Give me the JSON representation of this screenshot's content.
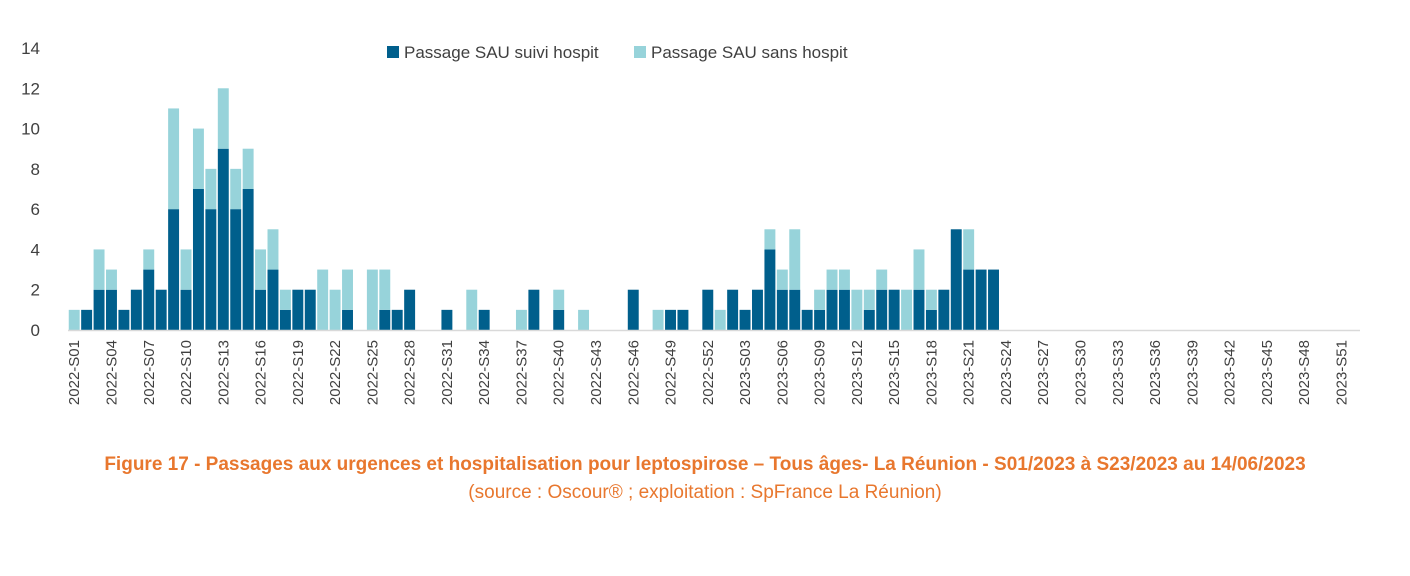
{
  "chart_data": {
    "type": "bar",
    "stacked": true,
    "title": "",
    "xlabel": "",
    "ylabel": "",
    "ylim": [
      0,
      14
    ],
    "yticks": [
      0,
      2,
      4,
      6,
      8,
      10,
      12,
      14
    ],
    "grid": false,
    "legend_position": "top-center",
    "colors": {
      "hosp": "#005F8C",
      "sans": "#97D3DA",
      "axis": "#D9D9D9"
    },
    "x_label_every": 3,
    "categories": [
      "2022-S01",
      "2022-S02",
      "2022-S03",
      "2022-S04",
      "2022-S05",
      "2022-S06",
      "2022-S07",
      "2022-S08",
      "2022-S09",
      "2022-S10",
      "2022-S11",
      "2022-S12",
      "2022-S13",
      "2022-S14",
      "2022-S15",
      "2022-S16",
      "2022-S17",
      "2022-S18",
      "2022-S19",
      "2022-S20",
      "2022-S21",
      "2022-S22",
      "2022-S23",
      "2022-S24",
      "2022-S25",
      "2022-S26",
      "2022-S27",
      "2022-S28",
      "2022-S29",
      "2022-S30",
      "2022-S31",
      "2022-S32",
      "2022-S33",
      "2022-S34",
      "2022-S35",
      "2022-S36",
      "2022-S37",
      "2022-S38",
      "2022-S39",
      "2022-S40",
      "2022-S41",
      "2022-S42",
      "2022-S43",
      "2022-S44",
      "2022-S45",
      "2022-S46",
      "2022-S47",
      "2022-S48",
      "2022-S49",
      "2022-S50",
      "2022-S51",
      "2022-S52",
      "2023-S01",
      "2023-S02",
      "2023-S03",
      "2023-S04",
      "2023-S05",
      "2023-S06",
      "2023-S07",
      "2023-S08",
      "2023-S09",
      "2023-S10",
      "2023-S11",
      "2023-S12",
      "2023-S13",
      "2023-S14",
      "2023-S15",
      "2023-S16",
      "2023-S17",
      "2023-S18",
      "2023-S19",
      "2023-S20",
      "2023-S21",
      "2023-S22",
      "2023-S23",
      "2023-S24",
      "2023-S25",
      "2023-S26",
      "2023-S27",
      "2023-S28",
      "2023-S29",
      "2023-S30",
      "2023-S31",
      "2023-S32",
      "2023-S33",
      "2023-S34",
      "2023-S35",
      "2023-S36",
      "2023-S37",
      "2023-S38",
      "2023-S39",
      "2023-S40",
      "2023-S41",
      "2023-S42",
      "2023-S43",
      "2023-S44",
      "2023-S45",
      "2023-S46",
      "2023-S47",
      "2023-S48",
      "2023-S49",
      "2023-S50",
      "2023-S51",
      "2023-S52"
    ],
    "series": [
      {
        "name": "Passage SAU suivi hospit",
        "values": [
          0,
          1,
          2,
          2,
          1,
          2,
          3,
          2,
          6,
          2,
          7,
          6,
          9,
          6,
          7,
          2,
          3,
          1,
          2,
          2,
          0,
          0,
          1,
          0,
          0,
          1,
          1,
          2,
          0,
          0,
          1,
          0,
          0,
          1,
          0,
          0,
          0,
          2,
          0,
          1,
          0,
          0,
          0,
          0,
          0,
          2,
          0,
          0,
          1,
          1,
          0,
          2,
          0,
          2,
          1,
          2,
          4,
          2,
          2,
          1,
          1,
          2,
          2,
          0,
          1,
          2,
          2,
          0,
          2,
          1,
          2,
          5,
          3,
          3,
          3,
          0,
          0,
          0,
          0,
          0,
          0,
          0,
          0,
          0,
          0,
          0,
          0,
          0,
          0,
          0,
          0,
          0,
          0,
          0,
          0,
          0,
          0,
          0,
          0,
          0,
          0,
          0,
          0,
          0
        ]
      },
      {
        "name": "Passage SAU sans hospit",
        "values": [
          1,
          0,
          2,
          1,
          0,
          0,
          1,
          0,
          5,
          2,
          3,
          2,
          3,
          2,
          2,
          2,
          2,
          1,
          0,
          0,
          3,
          2,
          2,
          0,
          3,
          2,
          0,
          0,
          0,
          0,
          0,
          0,
          2,
          0,
          0,
          0,
          1,
          0,
          0,
          1,
          0,
          1,
          0,
          0,
          0,
          0,
          0,
          1,
          0,
          0,
          0,
          0,
          1,
          0,
          0,
          0,
          1,
          1,
          3,
          0,
          1,
          1,
          1,
          2,
          1,
          1,
          0,
          2,
          2,
          1,
          0,
          0,
          2,
          0,
          0,
          0,
          0,
          0,
          0,
          0,
          0,
          0,
          0,
          0,
          0,
          0,
          0,
          0,
          0,
          0,
          0,
          0,
          0,
          0,
          0,
          0,
          0,
          0,
          0,
          0,
          0,
          0,
          0,
          0
        ]
      }
    ]
  },
  "caption": {
    "title": "Figure 17 - Passages aux urgences et hospitalisation pour leptospirose  – Tous âges- La Réunion - S01/2023 à S23/2023 au 14/06/2023",
    "source": "(source : Oscour® ; exploitation : SpFrance La Réunion)"
  }
}
